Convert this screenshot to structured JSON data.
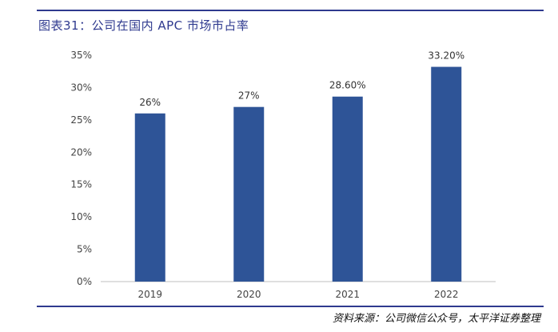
{
  "header": {
    "title": "图表31：公司在国内 APC 市场市占率"
  },
  "footer": {
    "source": "资料来源：公司微信公众号，太平洋证券整理"
  },
  "chart_data": {
    "type": "bar",
    "title": "",
    "xlabel": "",
    "ylabel": "",
    "categories": [
      "2019",
      "2020",
      "2021",
      "2022"
    ],
    "values": [
      26,
      27,
      28.6,
      33.2
    ],
    "data_labels": [
      "26%",
      "27%",
      "28.60%",
      "33.20%"
    ],
    "ylim": [
      0,
      35
    ],
    "yticks": [
      0,
      5,
      10,
      15,
      20,
      25,
      30,
      35
    ],
    "ytick_labels": [
      "0%",
      "5%",
      "10%",
      "15%",
      "20%",
      "25%",
      "30%",
      "35%"
    ],
    "grid": false,
    "colors": {
      "bar": "#2e5497",
      "axis": "#bfbfbf"
    }
  }
}
